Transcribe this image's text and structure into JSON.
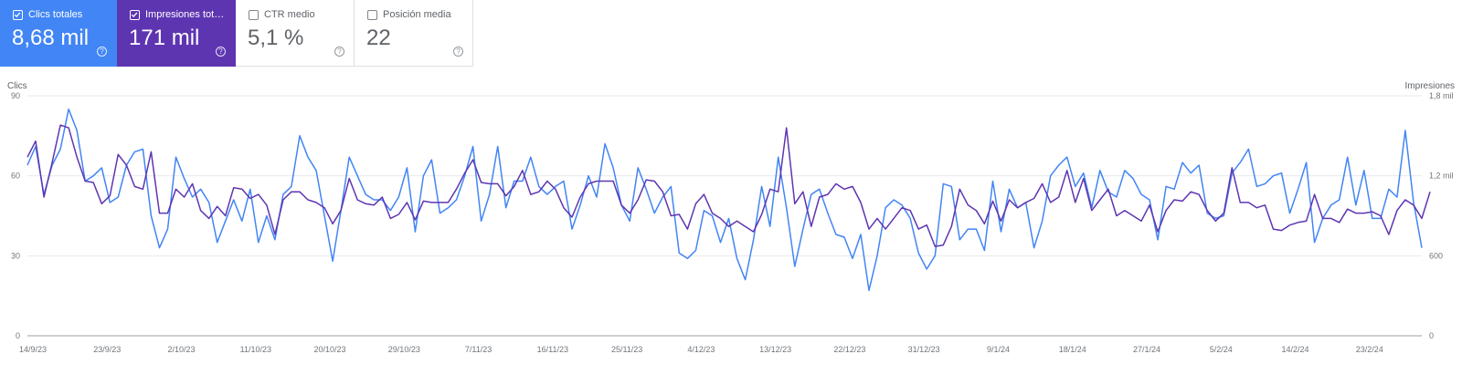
{
  "cards": [
    {
      "label": "Clics totales",
      "value": "8,68 mil",
      "checked": true
    },
    {
      "label": "Impresiones total…",
      "value": "171 mil",
      "checked": true
    },
    {
      "label": "CTR medio",
      "value": "5,1 %",
      "checked": false
    },
    {
      "label": "Posición media",
      "value": "22",
      "checked": false
    }
  ],
  "help_glyph": "?",
  "colors": {
    "clicks": "#4285f4",
    "impressions": "#5e35b1",
    "grid": "#e8eaed",
    "axis": "#9aa0a6"
  },
  "chart_data": {
    "type": "line",
    "left_axis": {
      "title": "Clics",
      "ticks": [
        "0",
        "30",
        "60",
        "90"
      ],
      "range": [
        0,
        90
      ]
    },
    "right_axis": {
      "title": "Impresiones",
      "ticks": [
        "0",
        "600",
        "1,2 mil",
        "1,8 mil"
      ],
      "range": [
        0,
        1800
      ]
    },
    "x_labels": [
      "14/9/23",
      "23/9/23",
      "2/10/23",
      "11/10/23",
      "20/10/23",
      "29/10/23",
      "7/11/23",
      "16/11/23",
      "25/11/23",
      "4/12/23",
      "13/12/23",
      "22/12/23",
      "31/12/23",
      "9/1/24",
      "18/1/24",
      "27/1/24",
      "5/2/24",
      "14/2/24",
      "23/2/24"
    ],
    "x_label_step": 9,
    "legend": "none",
    "grid": true,
    "series": [
      {
        "key": "clicks",
        "axis": "left",
        "values": [
          64,
          71,
          53,
          64,
          70,
          85,
          77,
          58,
          60,
          63,
          50,
          52,
          64,
          69,
          70,
          45,
          33,
          40,
          67,
          59,
          52,
          55,
          50,
          35,
          43,
          51,
          43,
          55,
          35,
          45,
          36,
          53,
          56,
          75,
          67,
          62,
          45,
          28,
          47,
          67,
          60,
          53,
          51,
          51,
          47,
          52,
          63,
          39,
          60,
          66,
          46,
          48,
          51,
          60,
          71,
          43,
          53,
          71,
          48,
          58,
          58,
          67,
          56,
          53,
          56,
          58,
          40,
          49,
          60,
          52,
          72,
          63,
          49,
          43,
          63,
          55,
          46,
          52,
          56,
          31,
          29,
          32,
          47,
          45,
          35,
          44,
          29,
          21,
          36,
          56,
          41,
          67,
          48,
          26,
          40,
          53,
          55,
          46,
          38,
          37,
          29,
          38,
          17,
          30,
          48,
          51,
          49,
          44,
          31,
          25,
          30,
          57,
          56,
          36,
          40,
          40,
          32,
          58,
          39,
          55,
          48,
          50,
          33,
          43,
          60,
          64,
          67,
          56,
          61,
          48,
          62,
          54,
          52,
          62,
          59,
          53,
          51,
          36,
          56,
          55,
          65,
          61,
          64,
          46,
          44,
          45,
          61,
          65,
          70,
          56,
          57,
          60,
          61,
          46,
          55,
          65,
          35,
          44,
          49,
          51,
          67,
          49,
          62,
          44,
          44,
          55,
          52,
          77,
          50,
          33
        ]
      },
      {
        "key": "impressions",
        "axis": "right",
        "values": [
          1340,
          1460,
          1040,
          1300,
          1580,
          1560,
          1340,
          1160,
          1150,
          990,
          1050,
          1360,
          1280,
          1120,
          1100,
          1380,
          920,
          920,
          1100,
          1040,
          1140,
          940,
          880,
          970,
          900,
          1110,
          1100,
          1030,
          1060,
          980,
          760,
          1020,
          1080,
          1080,
          1020,
          1000,
          960,
          840,
          940,
          1180,
          1020,
          990,
          980,
          1040,
          880,
          910,
          1000,
          870,
          1010,
          1000,
          1000,
          1000,
          1100,
          1220,
          1320,
          1150,
          1140,
          1140,
          1050,
          1120,
          1240,
          1060,
          1080,
          1160,
          1100,
          960,
          890,
          1040,
          1140,
          1160,
          1160,
          1160,
          980,
          920,
          1020,
          1170,
          1160,
          1080,
          900,
          910,
          800,
          990,
          1060,
          920,
          880,
          820,
          860,
          820,
          780,
          910,
          1100,
          1080,
          1560,
          990,
          1080,
          820,
          1040,
          1060,
          1140,
          1100,
          1120,
          1000,
          800,
          880,
          800,
          880,
          960,
          940,
          800,
          830,
          670,
          680,
          820,
          1100,
          980,
          940,
          840,
          1010,
          860,
          1020,
          960,
          1000,
          1030,
          1140,
          1000,
          1040,
          1240,
          1000,
          1180,
          940,
          1020,
          1100,
          900,
          940,
          900,
          860,
          980,
          780,
          940,
          1020,
          1010,
          1080,
          1060,
          940,
          860,
          920,
          1260,
          1000,
          1000,
          960,
          980,
          800,
          790,
          830,
          850,
          860,
          1060,
          880,
          880,
          850,
          950,
          920,
          920,
          930,
          900,
          760,
          940,
          1020,
          980,
          880,
          1080
        ]
      }
    ]
  }
}
